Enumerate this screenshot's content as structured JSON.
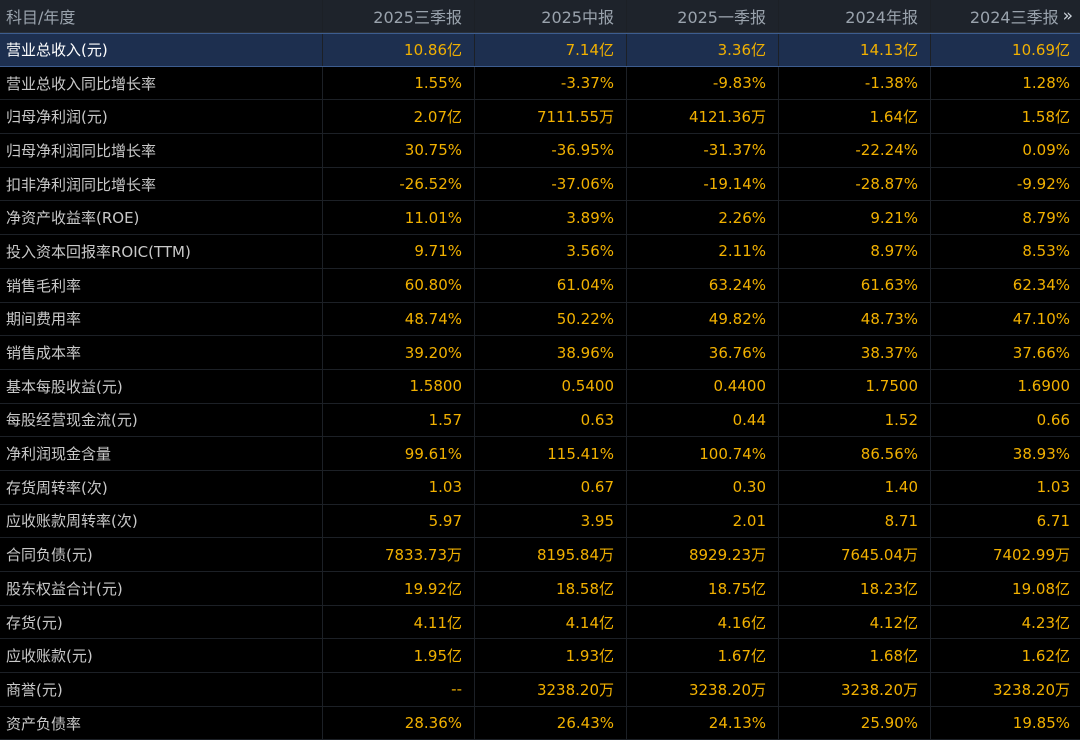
{
  "header": {
    "first_col": "科目/年度",
    "columns": [
      "2025三季报",
      "2025中报",
      "2025一季报",
      "2024年报",
      "2024三季报"
    ],
    "more_icon": "»"
  },
  "rows": [
    {
      "label": "营业总收入(元)",
      "values": [
        "10.86亿",
        "7.14亿",
        "3.36亿",
        "14.13亿",
        "10.69亿"
      ]
    },
    {
      "label": "营业总收入同比增长率",
      "values": [
        "1.55%",
        "-3.37%",
        "-9.83%",
        "-1.38%",
        "1.28%"
      ]
    },
    {
      "label": "归母净利润(元)",
      "values": [
        "2.07亿",
        "7111.55万",
        "4121.36万",
        "1.64亿",
        "1.58亿"
      ]
    },
    {
      "label": "归母净利润同比增长率",
      "values": [
        "30.75%",
        "-36.95%",
        "-31.37%",
        "-22.24%",
        "0.09%"
      ]
    },
    {
      "label": "扣非净利润同比增长率",
      "values": [
        "-26.52%",
        "-37.06%",
        "-19.14%",
        "-28.87%",
        "-9.92%"
      ]
    },
    {
      "label": "净资产收益率(ROE)",
      "values": [
        "11.01%",
        "3.89%",
        "2.26%",
        "9.21%",
        "8.79%"
      ]
    },
    {
      "label": "投入资本回报率ROIC(TTM)",
      "values": [
        "9.71%",
        "3.56%",
        "2.11%",
        "8.97%",
        "8.53%"
      ]
    },
    {
      "label": "销售毛利率",
      "values": [
        "60.80%",
        "61.04%",
        "63.24%",
        "61.63%",
        "62.34%"
      ]
    },
    {
      "label": "期间费用率",
      "values": [
        "48.74%",
        "50.22%",
        "49.82%",
        "48.73%",
        "47.10%"
      ]
    },
    {
      "label": "销售成本率",
      "values": [
        "39.20%",
        "38.96%",
        "36.76%",
        "38.37%",
        "37.66%"
      ]
    },
    {
      "label": "基本每股收益(元)",
      "values": [
        "1.5800",
        "0.5400",
        "0.4400",
        "1.7500",
        "1.6900"
      ]
    },
    {
      "label": "每股经营现金流(元)",
      "values": [
        "1.57",
        "0.63",
        "0.44",
        "1.52",
        "0.66"
      ]
    },
    {
      "label": "净利润现金含量",
      "values": [
        "99.61%",
        "115.41%",
        "100.74%",
        "86.56%",
        "38.93%"
      ]
    },
    {
      "label": "存货周转率(次)",
      "values": [
        "1.03",
        "0.67",
        "0.30",
        "1.40",
        "1.03"
      ]
    },
    {
      "label": "应收账款周转率(次)",
      "values": [
        "5.97",
        "3.95",
        "2.01",
        "8.71",
        "6.71"
      ]
    },
    {
      "label": "合同负债(元)",
      "values": [
        "7833.73万",
        "8195.84万",
        "8929.23万",
        "7645.04万",
        "7402.99万"
      ]
    },
    {
      "label": "股东权益合计(元)",
      "values": [
        "19.92亿",
        "18.58亿",
        "18.75亿",
        "18.23亿",
        "19.08亿"
      ]
    },
    {
      "label": "存货(元)",
      "values": [
        "4.11亿",
        "4.14亿",
        "4.16亿",
        "4.12亿",
        "4.23亿"
      ]
    },
    {
      "label": "应收账款(元)",
      "values": [
        "1.95亿",
        "1.93亿",
        "1.67亿",
        "1.68亿",
        "1.62亿"
      ]
    },
    {
      "label": "商誉(元)",
      "values": [
        "--",
        "3238.20万",
        "3238.20万",
        "3238.20万",
        "3238.20万"
      ]
    },
    {
      "label": "资产负债率",
      "values": [
        "28.36%",
        "26.43%",
        "24.13%",
        "25.90%",
        "19.85%"
      ]
    }
  ],
  "colors": {
    "value_text": "#f2b100",
    "label_text": "#c8c8c8",
    "header_bg": "#1e232b",
    "highlight_bg": "#1d2f4f",
    "background": "#000000"
  }
}
